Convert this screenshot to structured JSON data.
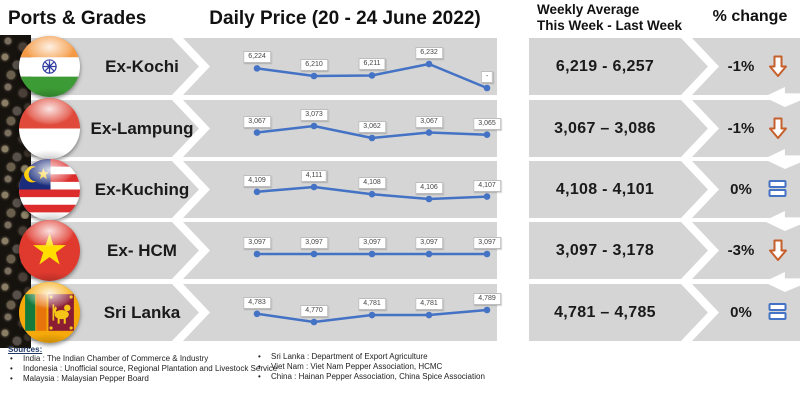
{
  "header": {
    "ports_grades": "Ports & Grades",
    "daily_price": "Daily Price (20 - 24 June 2022)",
    "weekly_line1": "Weekly Average",
    "weekly_line2": "This Week - Last Week",
    "pct_change": "% change"
  },
  "rows": [
    {
      "port": "Ex-Kochi",
      "flag": "india",
      "weekly": "6,219 - 6,257",
      "change": "-1%",
      "trend": "down"
    },
    {
      "port": "Ex-Lampung",
      "flag": "indonesia",
      "weekly": "3,067 – 3,086",
      "change": "-1%",
      "trend": "down"
    },
    {
      "port": "Ex-Kuching",
      "flag": "malaysia",
      "weekly": "4,108 - 4,101",
      "change": "0%",
      "trend": "flat"
    },
    {
      "port": "Ex- HCM",
      "flag": "vietnam",
      "weekly": "3,097 - 3,178",
      "change": "-3%",
      "trend": "down"
    },
    {
      "port": "Sri Lanka",
      "flag": "sri-lanka",
      "weekly": "4,781 – 4,785",
      "change": "0%",
      "trend": "flat"
    }
  ],
  "chart_data": {
    "type": "line",
    "title": "Daily Price (20 - 24 June 2022)",
    "x": [
      "20",
      "21",
      "22",
      "23",
      "24"
    ],
    "x_axis_visible": false,
    "y_axis_visible": false,
    "data_labels": true,
    "legend": "none",
    "series": [
      {
        "name": "Ex-Kochi",
        "values": [
          6224,
          6210,
          6211,
          6232,
          null
        ],
        "point_labels": [
          "6,224",
          "6,210",
          "6,211",
          "6,232",
          "-"
        ]
      },
      {
        "name": "Ex-Lampung",
        "values": [
          3067,
          3073,
          3062,
          3067,
          3065
        ],
        "point_labels": [
          "3,067",
          "3,073",
          "3,062",
          "3,067",
          "3,065"
        ]
      },
      {
        "name": "Ex-Kuching",
        "values": [
          4109,
          4111,
          4108,
          4106,
          4107
        ],
        "point_labels": [
          "4,109",
          "4,111",
          "4,108",
          "4,106",
          "4,107"
        ]
      },
      {
        "name": "Ex- HCM",
        "values": [
          3097,
          3097,
          3097,
          3097,
          3097
        ],
        "point_labels": [
          "3,097",
          "3,097",
          "3,097",
          "3,097",
          "3,097"
        ]
      },
      {
        "name": "Sri Lanka",
        "values": [
          4783,
          4770,
          4781,
          4781,
          4789
        ],
        "point_labels": [
          "4,783",
          "4,770",
          "4,781",
          "4,781",
          "4,789"
        ]
      }
    ]
  },
  "sources": {
    "title": "Sources:",
    "left": [
      "India : The Indian Chamber of Commerce & Industry",
      "Indonesia : Unofficial  source, Regional Plantation and Livestock Service",
      "Malaysia : Malaysian Pepper Board"
    ],
    "right": [
      "Sri Lanka : Department of Export Agriculture",
      "Viet Nam : Viet Nam Pepper Association, HCMC",
      "China : Hainan Pepper Association, China Spice Association"
    ]
  },
  "colors": {
    "line": "#4472C4",
    "band_gray": "#d5d5d5",
    "down_arrow": "#C55F2B",
    "flat_icon": "#4472C4",
    "sources_title": "#1F3864"
  }
}
